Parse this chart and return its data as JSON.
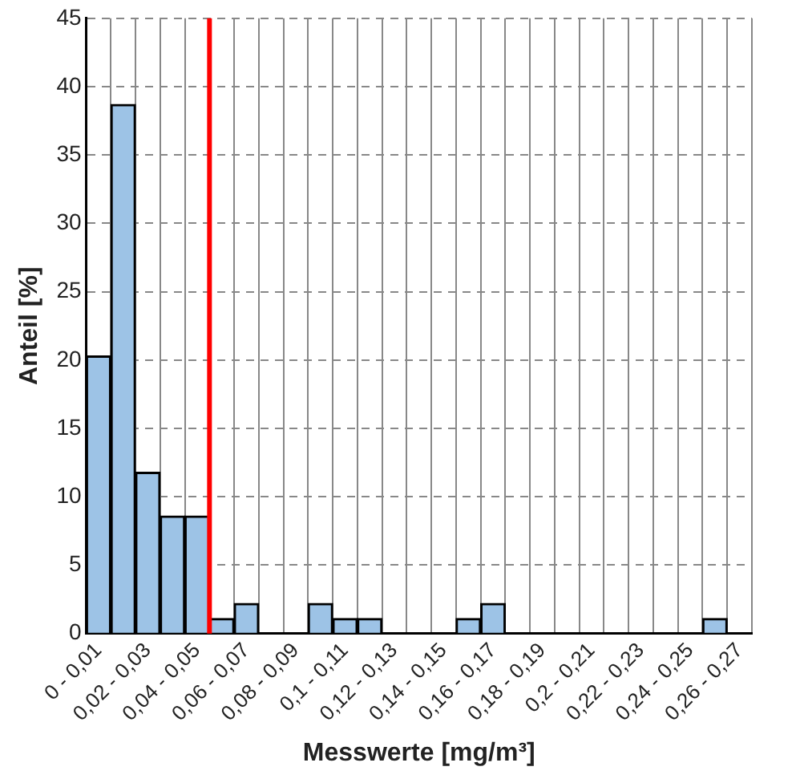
{
  "chart_data": {
    "type": "bar",
    "xlabel": "Messwerte [mg/m³]",
    "ylabel": "Anteil [%]",
    "categories": [
      "0 - 0,01",
      null,
      "0,02 - 0,03",
      null,
      "0,04 - 0,05",
      null,
      "0,06 - 0,07",
      null,
      "0,08 - 0,09",
      null,
      "0,1 - 0,11",
      null,
      "0,12 - 0,13",
      null,
      "0,14 - 0,15",
      null,
      "0,16 - 0,17",
      null,
      "0,18 - 0,19",
      null,
      "0,2 - 0,21",
      null,
      "0,22 - 0,23",
      null,
      "0,24 - 0,25",
      null,
      "0,26 - 0,27"
    ],
    "values": [
      20.3,
      38.7,
      11.8,
      8.6,
      8.6,
      1.1,
      2.2,
      0,
      0,
      2.2,
      1.1,
      1.1,
      0,
      0,
      0,
      1.1,
      2.2,
      0,
      0,
      0,
      0,
      0,
      0,
      0,
      0,
      1.1,
      0
    ],
    "color": "#9dc3e6",
    "ylim": [
      0,
      45
    ],
    "yticks": [
      0,
      5,
      10,
      15,
      20,
      25,
      30,
      35,
      40,
      45
    ],
    "grid": true,
    "ref_lines": [
      {
        "axis": "x",
        "value": "0,04 - 0,05",
        "color": "#ff0000"
      }
    ]
  }
}
